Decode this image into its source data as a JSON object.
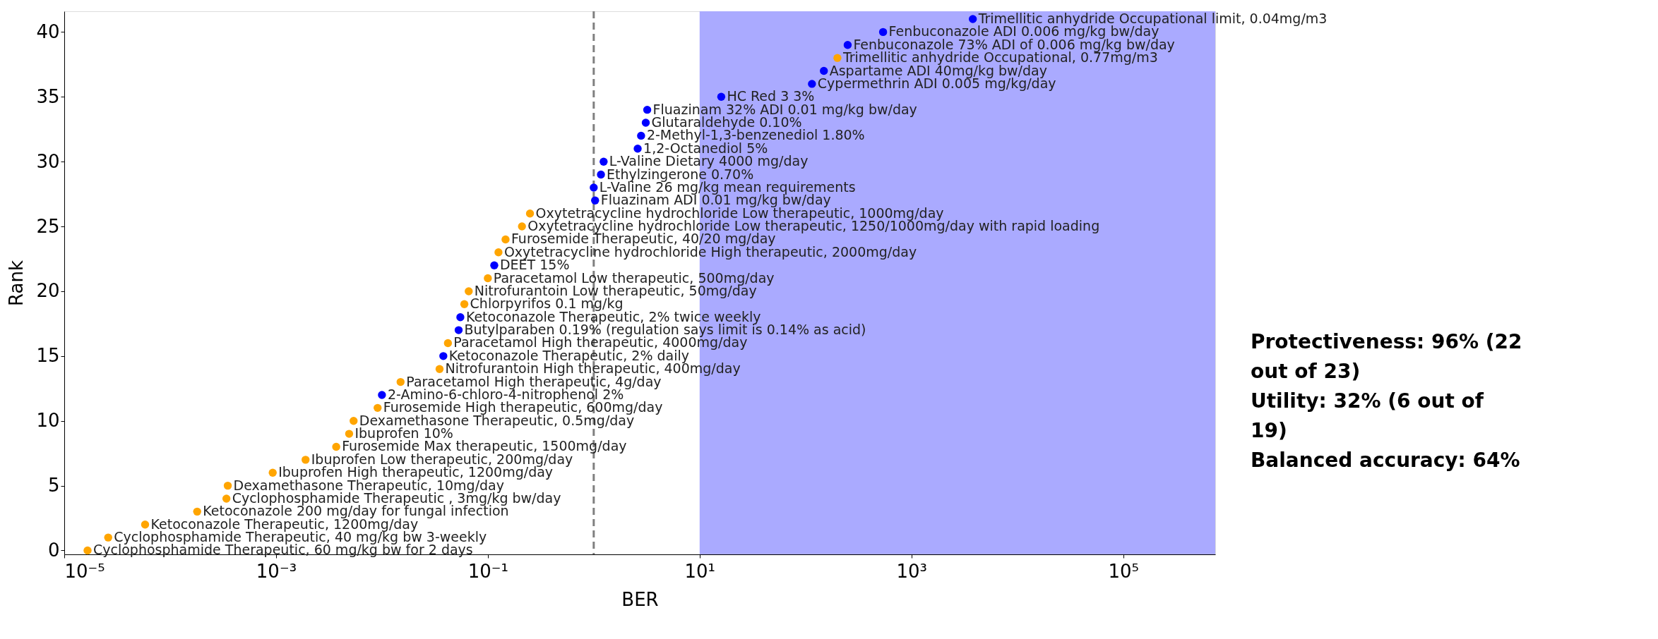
{
  "chart_data": {
    "type": "scatter",
    "xlabel": "BER",
    "ylabel": "Rank",
    "log": "x",
    "marker": "circle",
    "grid": false,
    "xlim": [
      1e-05,
      740000
    ],
    "ylim": [
      -0.3,
      41.6
    ],
    "xticks": [
      {
        "value": 1e-05,
        "label": "10⁻⁵"
      },
      {
        "value": 0.001,
        "label": "10⁻³"
      },
      {
        "value": 0.1,
        "label": "10⁻¹"
      },
      {
        "value": 10,
        "label": "10¹"
      },
      {
        "value": 1000,
        "label": "10³"
      },
      {
        "value": 100000,
        "label": "10⁵"
      }
    ],
    "yticks": [
      0,
      5,
      10,
      15,
      20,
      25,
      30,
      35,
      40
    ],
    "series": [
      {
        "color": "#ffa500",
        "x": [
          1.66e-05,
          2.6e-05,
          5.8e-05,
          0.00018,
          0.00034,
          0.00035,
          0.00093,
          0.0019,
          0.0037,
          0.0049,
          0.0054,
          0.0091,
          0.015,
          0.035,
          0.042,
          0.06,
          0.066,
          0.1,
          0.126,
          0.147,
          0.21,
          0.25,
          200
        ],
        "values": [
          0,
          1,
          2,
          3,
          4,
          5,
          6,
          7,
          8,
          9,
          10,
          11,
          13,
          14,
          16,
          19,
          20,
          21,
          23,
          24,
          25,
          26,
          38
        ]
      },
      {
        "color": "#0000ff",
        "x": [
          0.01,
          0.038,
          0.053,
          0.055,
          0.115,
          1.03,
          1.0,
          1.17,
          1.24,
          2.6,
          2.8,
          3.1,
          3.2,
          16,
          115,
          149,
          250,
          540,
          3800
        ],
        "values": [
          12,
          15,
          17,
          18,
          22,
          27,
          28,
          29,
          30,
          31,
          32,
          33,
          34,
          35,
          36,
          37,
          39,
          40,
          41
        ]
      }
    ],
    "ref_lines": [
      {
        "axis": "x",
        "value": 1,
        "color": "#808080",
        "line_style": "dashed"
      }
    ],
    "bands": [
      {
        "axis": "x",
        "from": 10,
        "to": 740000,
        "color": "#aaaaff"
      }
    ],
    "annotations": [
      {
        "text": "Cyclophosphamide Therapeutic, 60 mg/kg bw for 2 days",
        "x": 1.66e-05,
        "y": 0
      },
      {
        "text": "Cyclophosphamide Therapeutic, 40 mg/kg bw 3-weekly",
        "x": 2.6e-05,
        "y": 1
      },
      {
        "text": "Ketoconazole Therapeutic, 1200mg/day",
        "x": 5.8e-05,
        "y": 2
      },
      {
        "text": "Ketoconazole 200 mg/day for fungal infection",
        "x": 0.00018,
        "y": 3
      },
      {
        "text": "Cyclophosphamide Therapeutic , 3mg/kg bw/day",
        "x": 0.00034,
        "y": 4
      },
      {
        "text": "Dexamethasone Therapeutic, 10mg/day",
        "x": 0.00035,
        "y": 5
      },
      {
        "text": "Ibuprofen High therapeutic, 1200mg/day",
        "x": 0.00093,
        "y": 6
      },
      {
        "text": "Ibuprofen Low therapeutic, 200mg/day",
        "x": 0.0019,
        "y": 7
      },
      {
        "text": "Furosemide Max therapeutic, 1500mg/day",
        "x": 0.0037,
        "y": 8
      },
      {
        "text": "Ibuprofen 10%",
        "x": 0.0049,
        "y": 9
      },
      {
        "text": "Dexamethasone Therapeutic, 0.5mg/day",
        "x": 0.0054,
        "y": 10
      },
      {
        "text": "Furosemide High therapeutic, 600mg/day",
        "x": 0.0091,
        "y": 11
      },
      {
        "text": "2-Amino-6-chloro-4-nitrophenol 2%",
        "x": 0.01,
        "y": 12
      },
      {
        "text": "Paracetamol High therapeutic, 4g/day",
        "x": 0.015,
        "y": 13
      },
      {
        "text": "Nitrofurantoin High therapeutic, 400mg/day",
        "x": 0.035,
        "y": 14
      },
      {
        "text": "Ketoconazole Therapeutic, 2% daily",
        "x": 0.038,
        "y": 15
      },
      {
        "text": "Paracetamol High therapeutic, 4000mg/day",
        "x": 0.042,
        "y": 16
      },
      {
        "text": "Butylparaben 0.19% (regulation says limit is 0.14% as acid)",
        "x": 0.053,
        "y": 17
      },
      {
        "text": "Ketoconazole Therapeutic, 2% twice weekly",
        "x": 0.055,
        "y": 18
      },
      {
        "text": "Chlorpyrifos 0.1 mg/kg",
        "x": 0.06,
        "y": 19
      },
      {
        "text": "Nitrofurantoin Low therapeutic, 50mg/day",
        "x": 0.066,
        "y": 20
      },
      {
        "text": "Paracetamol Low therapeutic, 500mg/day",
        "x": 0.1,
        "y": 21
      },
      {
        "text": "DEET 15%",
        "x": 0.115,
        "y": 22
      },
      {
        "text": "Oxytetracycline hydrochloride High therapeutic, 2000mg/day",
        "x": 0.126,
        "y": 23
      },
      {
        "text": "Furosemide Therapeutic, 40/20 mg/day",
        "x": 0.147,
        "y": 24
      },
      {
        "text": "Oxytetracycline hydrochloride Low therapeutic, 1250/1000mg/day with rapid loading",
        "x": 0.21,
        "y": 25
      },
      {
        "text": "Oxytetracycline hydrochloride Low therapeutic, 1000mg/day",
        "x": 0.25,
        "y": 26
      },
      {
        "text": "Fluazinam ADI 0.01 mg/kg bw/day",
        "x": 1.03,
        "y": 27
      },
      {
        "text": "L-Valine 26 mg/kg mean requirements",
        "x": 1.0,
        "y": 28
      },
      {
        "text": "Ethylzingerone 0.70%",
        "x": 1.17,
        "y": 29
      },
      {
        "text": "L-Valine Dietary 4000 mg/day",
        "x": 1.24,
        "y": 30
      },
      {
        "text": "1,2-Octanediol 5%",
        "x": 2.6,
        "y": 31
      },
      {
        "text": "2-Methyl-1,3-benzenediol 1.80%",
        "x": 2.8,
        "y": 32
      },
      {
        "text": "Glutaraldehyde 0.10%",
        "x": 3.1,
        "y": 33
      },
      {
        "text": "Fluazinam 32% ADI 0.01 mg/kg bw/day",
        "x": 3.2,
        "y": 34
      },
      {
        "text": "HC Red 3 3%",
        "x": 16,
        "y": 35
      },
      {
        "text": "Cypermethrin ADI 0.005 mg/kg/day",
        "x": 115,
        "y": 36
      },
      {
        "text": "Aspartame ADI 40mg/kg bw/day",
        "x": 149,
        "y": 37
      },
      {
        "text": "Trimellitic anhydride Occupational, 0.77mg/m3",
        "x": 200,
        "y": 38
      },
      {
        "text": "Fenbuconazole 73% ADI of  0.006 mg/kg bw/day",
        "x": 250,
        "y": 39
      },
      {
        "text": "Fenbuconazole ADI 0.006 mg/kg bw/day",
        "x": 540,
        "y": 40
      },
      {
        "text": "Trimellitic anhydride Occupational limit, 0.04mg/m3",
        "x": 3800,
        "y": 41
      },
      "Protectiveness: 96% (22 out of 23)",
      "Utility: 32% (6 out of 19)",
      "Balanced accuracy: 64%"
    ]
  }
}
